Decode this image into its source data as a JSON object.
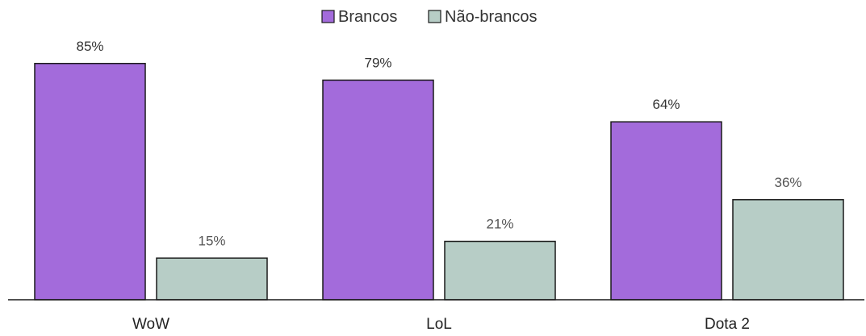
{
  "chart_data": {
    "type": "bar",
    "title": "",
    "xlabel": "",
    "ylabel": "",
    "categories": [
      "WoW",
      "LoL",
      "Dota 2"
    ],
    "series": [
      {
        "name": "Brancos",
        "values": [
          85,
          79,
          64
        ],
        "labels": [
          "85%",
          "79%",
          "64%"
        ],
        "color": "#a36bdb"
      },
      {
        "name": "Não-brancos",
        "values": [
          15,
          21,
          36
        ],
        "labels": [
          "15%",
          "21%",
          "36%"
        ],
        "color": "#b7cdc6"
      }
    ],
    "ylim": [
      0,
      100
    ],
    "value_unit": "%",
    "grid": false,
    "legend_position": "top-center",
    "bar_border_color": "#1a1a1a",
    "axis_color": "#1a1a1a"
  }
}
